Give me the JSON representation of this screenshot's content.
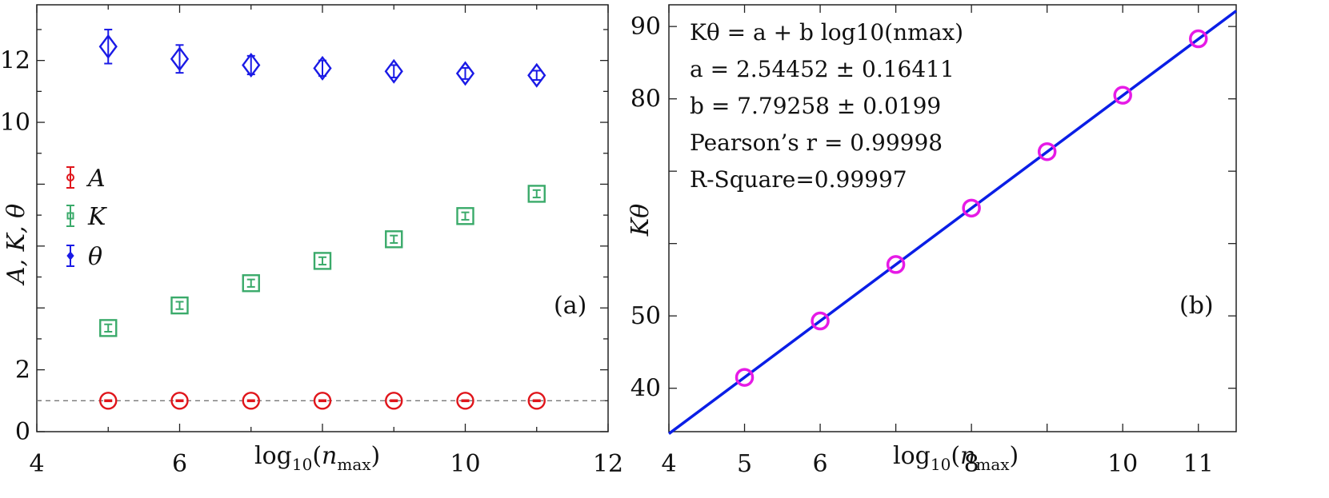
{
  "chart_data": [
    {
      "panel": "a",
      "type": "scatter",
      "panel_label": "(a)",
      "xlabel": "log10(nmax)",
      "ylabel": "A, K, θ",
      "xlim": [
        4,
        12
      ],
      "ylim": [
        0,
        13.8
      ],
      "xticks": [
        4,
        6,
        10,
        12
      ],
      "yticks": [
        0,
        2,
        10,
        12
      ],
      "legend_position": "left-middle",
      "series": [
        {
          "name": "A",
          "color": "#e0151b",
          "marker": "circle",
          "x": [
            5,
            6,
            7,
            8,
            9,
            10,
            11
          ],
          "y": [
            1.0,
            1.0,
            1.0,
            1.0,
            1.0,
            1.0,
            1.0
          ],
          "err": [
            0.02,
            0.02,
            0.02,
            0.02,
            0.02,
            0.02,
            0.02
          ]
        },
        {
          "name": "K",
          "color": "#3aaa6a",
          "marker": "square",
          "x": [
            5,
            6,
            7,
            8,
            9,
            10,
            11
          ],
          "y": [
            3.35,
            4.08,
            4.8,
            5.52,
            6.22,
            6.97,
            7.69
          ],
          "err": [
            0.12,
            0.12,
            0.12,
            0.12,
            0.12,
            0.12,
            0.12
          ]
        },
        {
          "name": "θ",
          "color": "#1a1ae6",
          "marker": "diamond",
          "x": [
            5,
            6,
            7,
            8,
            9,
            10,
            11
          ],
          "y": [
            12.45,
            12.05,
            11.85,
            11.75,
            11.65,
            11.58,
            11.52
          ],
          "err": [
            0.55,
            0.45,
            0.3,
            0.25,
            0.2,
            0.18,
            0.15
          ]
        }
      ],
      "reference_line": {
        "y": 1.0,
        "style": "dashed"
      }
    },
    {
      "panel": "b",
      "type": "scatter",
      "panel_label": "(b)",
      "xlabel": "log10(nmax)",
      "ylabel": "Kθ",
      "xlim": [
        4,
        11.5
      ],
      "ylim": [
        34,
        93
      ],
      "xticks": [
        4,
        5,
        6,
        8,
        10,
        11
      ],
      "yticks": [
        40,
        50,
        80,
        90
      ],
      "points": {
        "color": "#e61ae6",
        "x": [
          5,
          6,
          7,
          8,
          9,
          10,
          11
        ],
        "y": [
          41.5,
          49.3,
          57.1,
          64.9,
          72.7,
          80.5,
          88.3
        ]
      },
      "fit": {
        "a": 2.54452,
        "b": 7.79258,
        "color": "#0a1ee6"
      },
      "annotation": [
        "Kθ = a + b log10(nmax)",
        "a = 2.54452 ± 0.16411",
        "b = 7.79258 ± 0.0199",
        "Pearson’s r = 0.99998",
        "R-Square=0.99997"
      ]
    }
  ]
}
